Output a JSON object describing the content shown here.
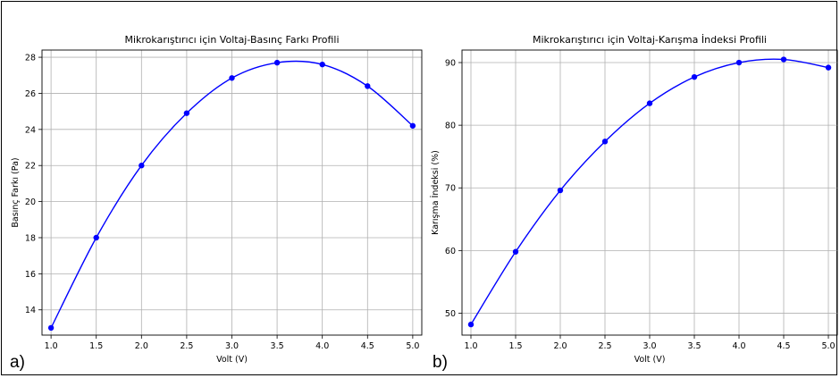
{
  "chart_data": [
    {
      "type": "line",
      "panel_label": "a)",
      "title": "Mikrokarıştırıcı için Voltaj-Basınç Farkı Profili",
      "xlabel": "Volt (V)",
      "ylabel": "Basınç Farkı (Pa)",
      "xlim": [
        0.9,
        5.1
      ],
      "ylim": [
        12.6,
        28.4
      ],
      "xticks": [
        "1.0",
        "1.5",
        "2.0",
        "2.5",
        "3.0",
        "3.5",
        "4.0",
        "4.5",
        "5.0"
      ],
      "yticks": [
        "14",
        "16",
        "18",
        "20",
        "22",
        "24",
        "26",
        "28"
      ],
      "grid": true,
      "color": "#0000ff",
      "x": [
        1.0,
        1.5,
        2.0,
        2.5,
        3.0,
        3.5,
        4.0,
        4.5,
        5.0
      ],
      "y": [
        13.0,
        18.0,
        22.0,
        24.9,
        26.85,
        27.7,
        27.6,
        26.4,
        24.2
      ]
    },
    {
      "type": "line",
      "panel_label": "b)",
      "title": "Mikrokarıştırıcı için Voltaj-Karışma İndeksi Profili",
      "xlabel": "Volt (V)",
      "ylabel": "Karışma İndeksi (%)",
      "xlim": [
        0.9,
        5.1
      ],
      "ylim": [
        46.5,
        92.0
      ],
      "xticks": [
        "1.0",
        "1.5",
        "2.0",
        "2.5",
        "3.0",
        "3.5",
        "4.0",
        "4.5",
        "5.0"
      ],
      "yticks": [
        "50",
        "60",
        "70",
        "80",
        "90"
      ],
      "grid": true,
      "color": "#0000ff",
      "x": [
        1.0,
        1.5,
        2.0,
        2.5,
        3.0,
        3.5,
        4.0,
        4.5,
        5.0
      ],
      "y": [
        48.2,
        59.8,
        69.6,
        77.4,
        83.5,
        87.7,
        90.0,
        90.5,
        89.2
      ]
    }
  ]
}
